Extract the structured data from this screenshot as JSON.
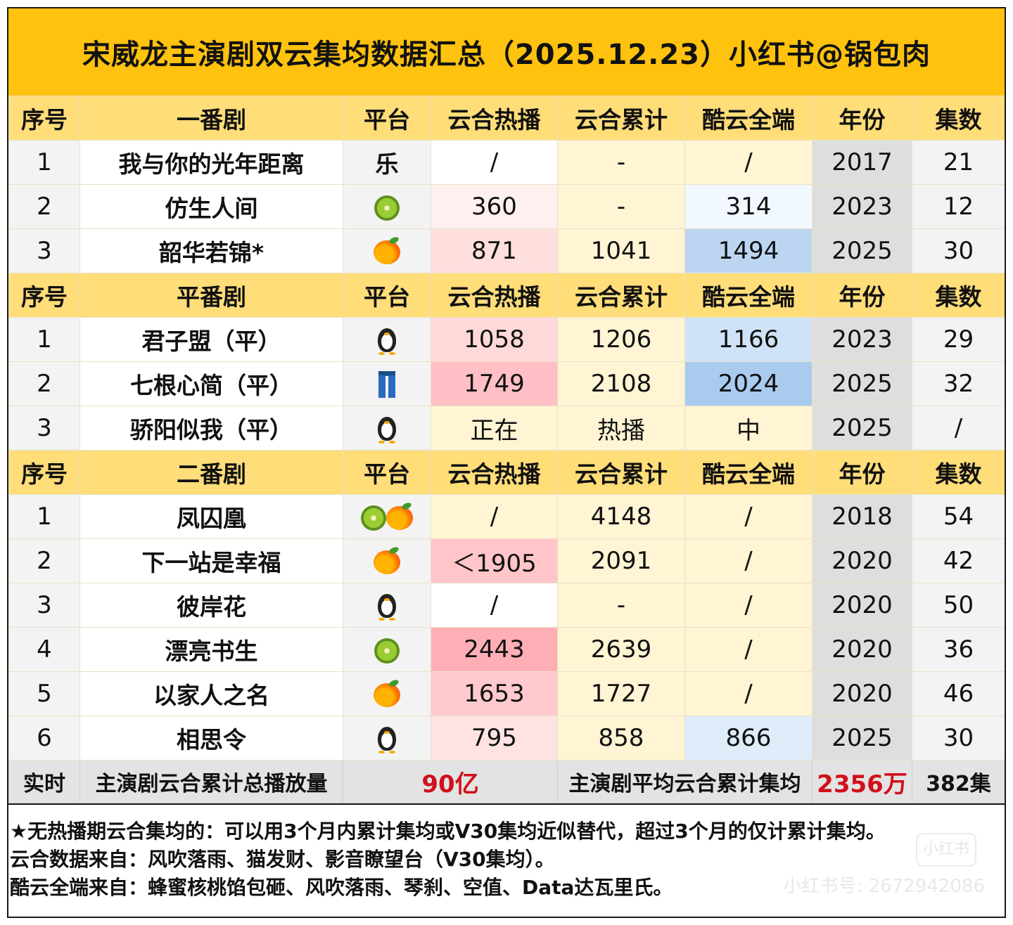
{
  "title": "宋威龙主演剧双云集均数据汇总（2025.12.23）小红书@锅包肉",
  "headers": [
    "序号",
    "平台",
    "云合热播",
    "云合累计",
    "酷云全端",
    "年份",
    "集数"
  ],
  "sections": [
    {
      "header": "一番剧",
      "rows": [
        {
          "idx": "1",
          "name": "我与你的光年距离",
          "platform_text": "乐",
          "platform_icons": [],
          "hot": "/",
          "cum": "-",
          "ky": "/",
          "year": "2017",
          "eps": "21",
          "hot_bg": "#ffffff",
          "cum_bg": "#fff4d4",
          "ky_bg": "#fff4d4"
        },
        {
          "idx": "2",
          "name": "仿生人间",
          "platform_text": "",
          "platform_icons": [
            "kiwi-icon"
          ],
          "hot": "360",
          "cum": "-",
          "ky": "314",
          "year": "2023",
          "eps": "12",
          "hot_bg": "#fff0f0",
          "cum_bg": "#fff4d4",
          "ky_bg": "#f2f8ff"
        },
        {
          "idx": "3",
          "name": "韶华若锦*",
          "platform_text": "",
          "platform_icons": [
            "mango-icon"
          ],
          "hot": "871",
          "cum": "1041",
          "ky": "1494",
          "year": "2025",
          "eps": "30",
          "hot_bg": "#ffdede",
          "cum_bg": "#fff4d4",
          "ky_bg": "#bcd6f2"
        }
      ]
    },
    {
      "header": "平番剧",
      "rows": [
        {
          "idx": "1",
          "name": "君子盟（平）",
          "platform_text": "",
          "platform_icons": [
            "penguin-icon"
          ],
          "hot": "1058",
          "cum": "1206",
          "ky": "1166",
          "year": "2023",
          "eps": "29",
          "hot_bg": "#ffd9d9",
          "cum_bg": "#fff4d4",
          "ky_bg": "#cfe2f7"
        },
        {
          "idx": "2",
          "name": "七根心简（平）",
          "platform_text": "",
          "platform_icons": [
            "jeans-icon"
          ],
          "hot": "1749",
          "cum": "2108",
          "ky": "2024",
          "year": "2025",
          "eps": "32",
          "hot_bg": "#ffbfc4",
          "cum_bg": "#fff4d4",
          "ky_bg": "#a9cbee"
        },
        {
          "idx": "3",
          "name": "骄阳似我（平）",
          "platform_text": "",
          "platform_icons": [
            "penguin-icon"
          ],
          "hot": "正在",
          "cum": "热播",
          "ky": "中",
          "year": "2025",
          "eps": "/",
          "hot_bg": "#fff4d4",
          "cum_bg": "#fff4d4",
          "ky_bg": "#fff4d4"
        }
      ]
    },
    {
      "header": "二番剧",
      "rows": [
        {
          "idx": "1",
          "name": "凤囚凰",
          "platform_text": "",
          "platform_icons": [
            "kiwi-icon",
            "mango-icon"
          ],
          "hot": "/",
          "cum": "4148",
          "ky": "/",
          "year": "2018",
          "eps": "54",
          "hot_bg": "#fff4d4",
          "cum_bg": "#fff4d4",
          "ky_bg": "#fff4d4"
        },
        {
          "idx": "2",
          "name": "下一站是幸福",
          "platform_text": "",
          "platform_icons": [
            "mango-icon"
          ],
          "hot": "＜1905",
          "cum": "2091",
          "ky": "/",
          "year": "2020",
          "eps": "42",
          "hot_bg": "#ffc5c9",
          "cum_bg": "#fff4d4",
          "ky_bg": "#fff4d4"
        },
        {
          "idx": "3",
          "name": "彼岸花",
          "platform_text": "",
          "platform_icons": [
            "penguin-icon"
          ],
          "hot": "/",
          "cum": "-",
          "ky": "/",
          "year": "2020",
          "eps": "50",
          "hot_bg": "#ffffff",
          "cum_bg": "#fff4d4",
          "ky_bg": "#fff4d4"
        },
        {
          "idx": "4",
          "name": "漂亮书生",
          "platform_text": "",
          "platform_icons": [
            "kiwi-icon"
          ],
          "hot": "2443",
          "cum": "2639",
          "ky": "/",
          "year": "2020",
          "eps": "36",
          "hot_bg": "#ffaeb6",
          "cum_bg": "#fff4d4",
          "ky_bg": "#fff4d4"
        },
        {
          "idx": "5",
          "name": "以家人之名",
          "platform_text": "",
          "platform_icons": [
            "mango-icon"
          ],
          "hot": "1653",
          "cum": "1727",
          "ky": "/",
          "year": "2020",
          "eps": "46",
          "hot_bg": "#ffc9cd",
          "cum_bg": "#fff4d4",
          "ky_bg": "#fff4d4"
        },
        {
          "idx": "6",
          "name": "相思令",
          "platform_text": "",
          "platform_icons": [
            "penguin-icon"
          ],
          "hot": "795",
          "cum": "858",
          "ky": "866",
          "year": "2025",
          "eps": "30",
          "hot_bg": "#ffe3e3",
          "cum_bg": "#fff4d4",
          "ky_bg": "#dfecfa"
        }
      ]
    }
  ],
  "summary": {
    "label": "实时",
    "total_label": "主演剧云合累计总播放量",
    "total_value": "90亿",
    "avg_label": "主演剧平均云合累计集均",
    "avg_value": "2356万",
    "episodes": "382集"
  },
  "notes": [
    "★无热播期云合集均的：可以用3个月内累计集均或V30集均近似替代，超过3个月的仅计累计集均。",
    "云合数据来自：风吹落雨、猫发财、影音瞭望台（V30集均）。",
    "酷云全端来自：蜂蜜核桃馅包砸、风吹落雨、琴刹、空值、Data达瓦里氏。"
  ],
  "watermark": "小红书号: 2672942086",
  "watermark_logo": "小红书",
  "colors": {
    "title_bg": "#ffc20e",
    "header_bg": "#ffdd79",
    "summary_red": "#d0111b"
  }
}
